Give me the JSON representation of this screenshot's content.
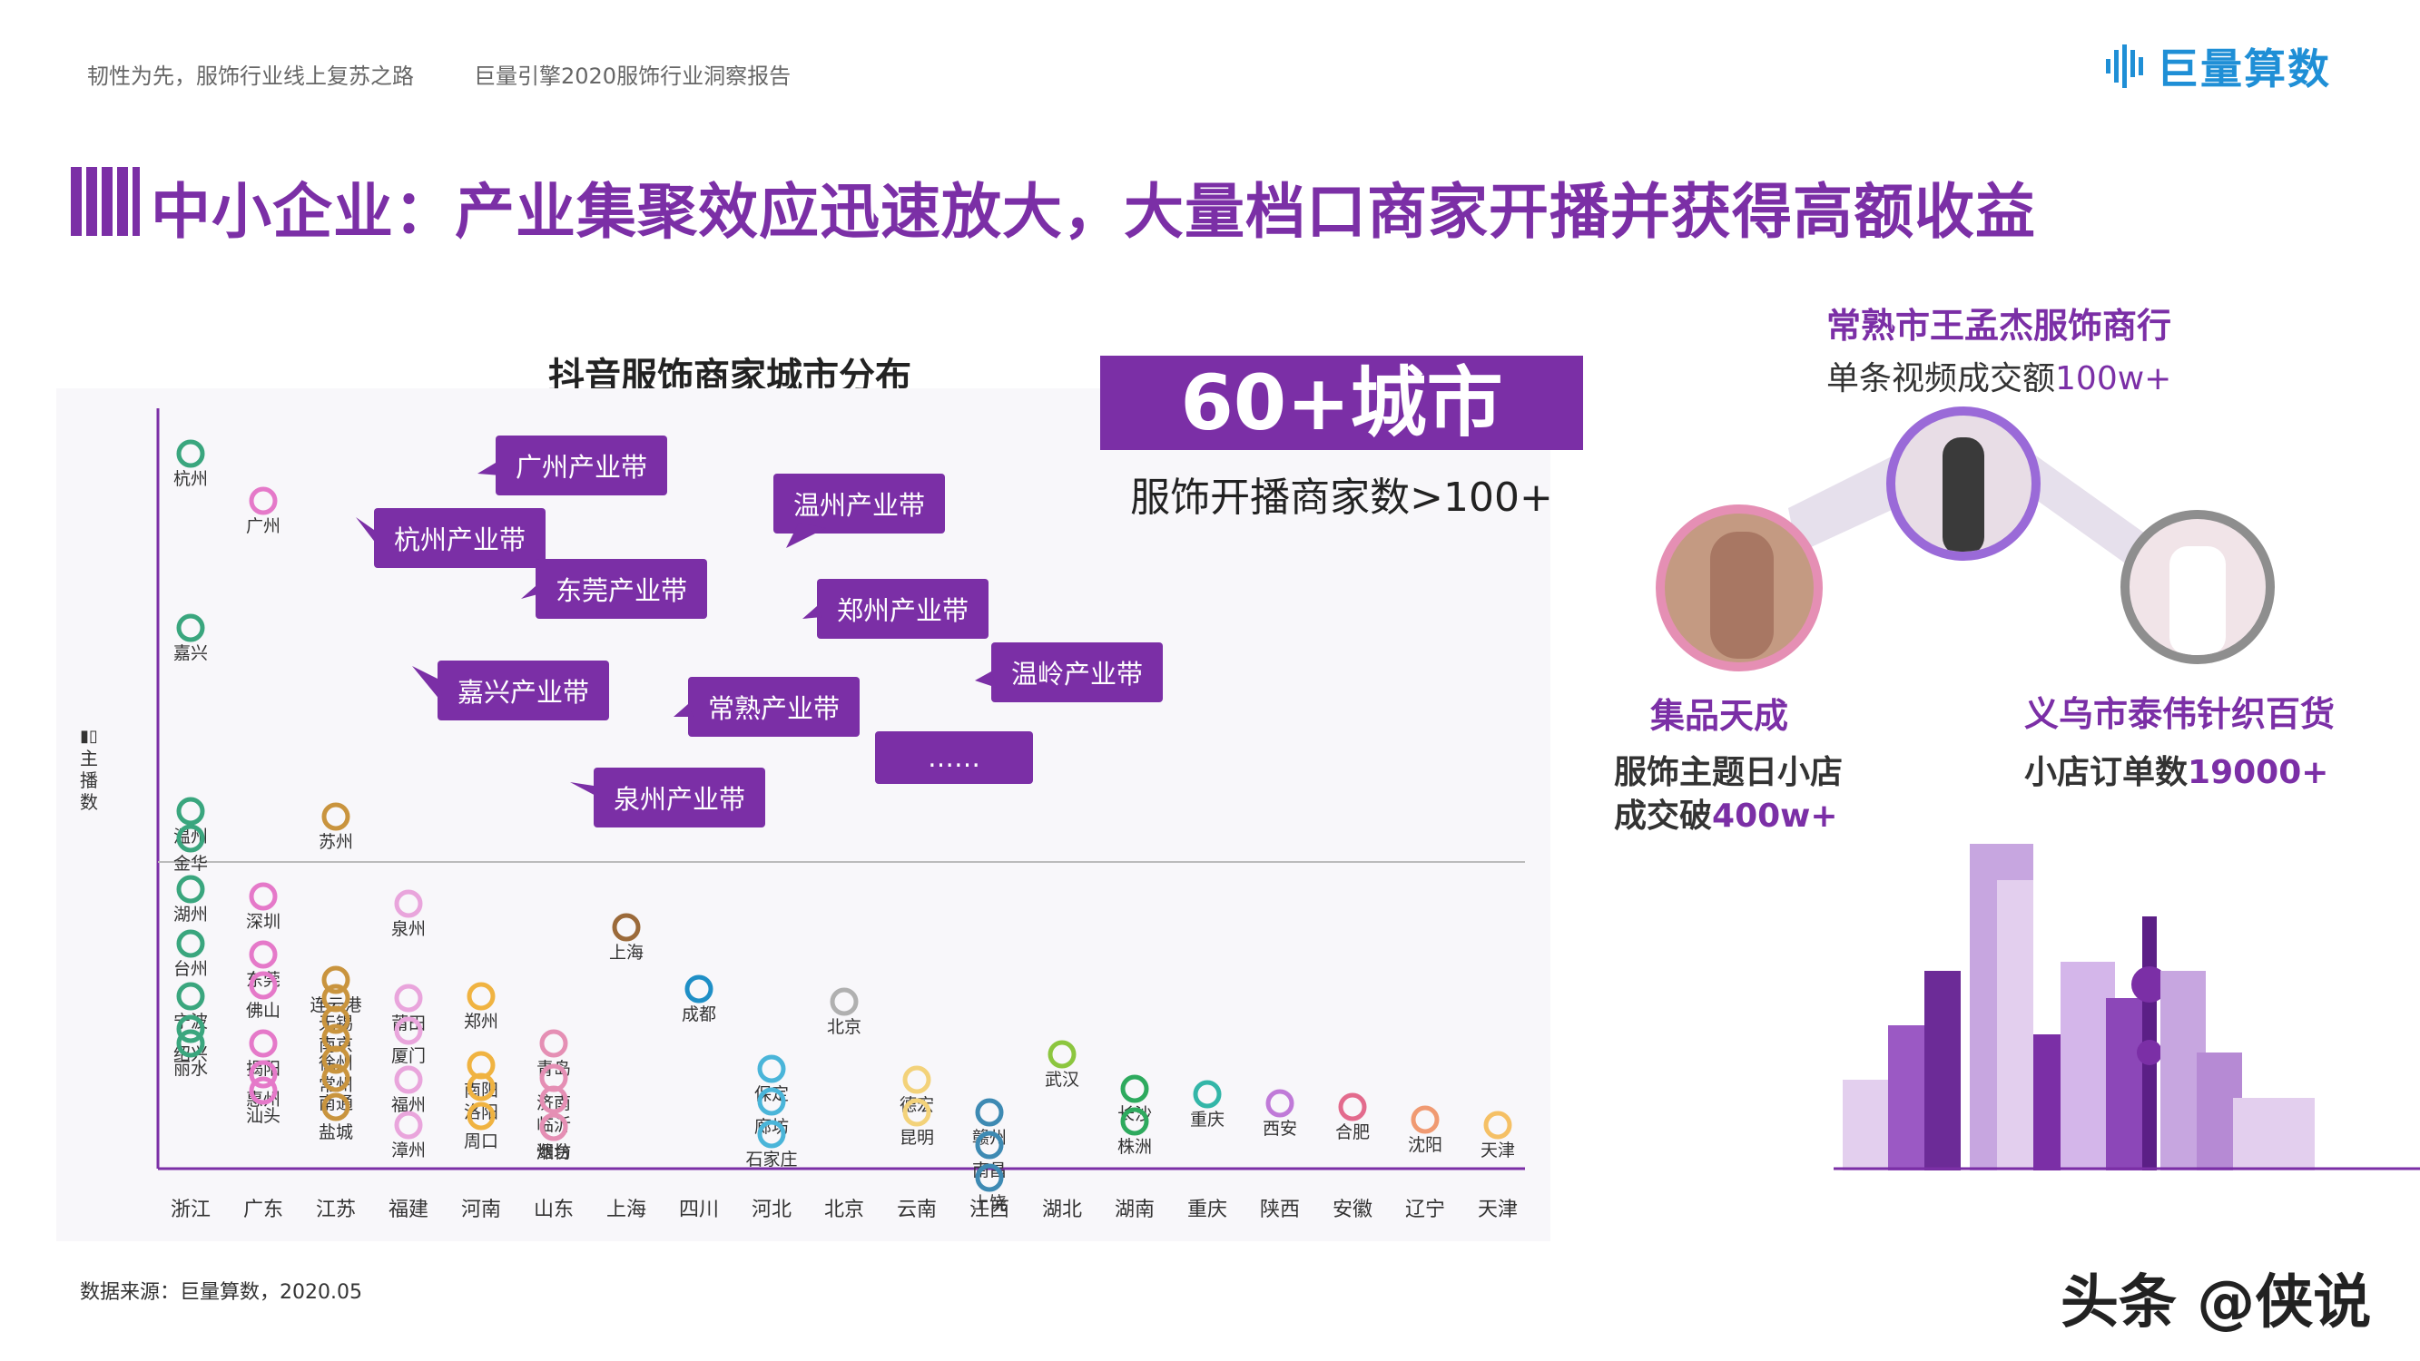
{
  "header": {
    "left_text": "韧性为先，服饰行业线上复苏之路",
    "right_text": "巨量引擎2020服饰行业洞察报告",
    "logo_text": "巨量算数"
  },
  "main_title": "中小企业：产业集聚效应迅速放大，大量档口商家开播并获得高额收益",
  "chart_title": "抖音服饰商家城市分布",
  "y_axis_label": "主播数",
  "bubbles": [
    "广州产业带",
    "杭州产业带",
    "东莞产业带",
    "温州产业带",
    "郑州产业带",
    "嘉兴产业带",
    "常熟产业带",
    "温岭产业带",
    "泉州产业带",
    "……"
  ],
  "stat": {
    "value": "60+城市",
    "sub": "服饰开播商家数>100+"
  },
  "cases": {
    "top": {
      "title": "常熟市王孟杰服饰商行",
      "desc_prefix": "单条视频成交额",
      "desc_highlight": "100w+"
    },
    "left": {
      "title": "集品天成",
      "desc_line1": "服饰主题日小店",
      "desc_prefix": "成交破",
      "desc_highlight": "400w+"
    },
    "right": {
      "title": "义乌市泰伟针织百货",
      "desc_prefix": "小店订单数",
      "desc_highlight": "19000+"
    }
  },
  "source": "数据来源：巨量算数，2020.05",
  "watermark": "头条 @侠说",
  "colors": {
    "purple": "#7b2fa6",
    "pink": "#e579c9",
    "green": "#3aa67e",
    "orange": "#f0b341",
    "brown": "#9b6a3a"
  },
  "chart_data": {
    "type": "scatter",
    "title": "抖音服饰商家城市分布",
    "ylabel": "主播数",
    "categories": [
      "浙江",
      "广东",
      "江苏",
      "福建",
      "河南",
      "山东",
      "上海",
      "四川",
      "河北",
      "北京",
      "云南",
      "江西",
      "湖北",
      "湖南",
      "重庆",
      "陕西",
      "安徽",
      "辽宁",
      "天津"
    ],
    "points": [
      {
        "province": "浙江",
        "city": "杭州",
        "rank": 1,
        "color": "#3aa67e"
      },
      {
        "province": "浙江",
        "city": "嘉兴",
        "rank": 2,
        "color": "#3aa67e"
      },
      {
        "province": "浙江",
        "city": "温州",
        "rank": 3,
        "color": "#3aa67e"
      },
      {
        "province": "浙江",
        "city": "金华",
        "rank": 4,
        "color": "#3aa67e"
      },
      {
        "province": "浙江",
        "city": "湖州",
        "rank": 5,
        "color": "#3aa67e"
      },
      {
        "province": "浙江",
        "city": "台州",
        "rank": 6,
        "color": "#3aa67e"
      },
      {
        "province": "浙江",
        "city": "宁波",
        "rank": 7,
        "color": "#3aa67e"
      },
      {
        "province": "浙江",
        "city": "绍兴",
        "rank": 8,
        "color": "#3aa67e"
      },
      {
        "province": "浙江",
        "city": "丽水",
        "rank": 9,
        "color": "#3aa67e"
      },
      {
        "province": "广东",
        "city": "广州",
        "rank": 1,
        "color": "#e579c9"
      },
      {
        "province": "广东",
        "city": "深圳",
        "rank": 2,
        "color": "#e579c9"
      },
      {
        "province": "广东",
        "city": "东莞",
        "rank": 3,
        "color": "#e579c9"
      },
      {
        "province": "广东",
        "city": "佛山",
        "rank": 4,
        "color": "#e579c9"
      },
      {
        "province": "广东",
        "city": "揭阳",
        "rank": 5,
        "color": "#e579c9"
      },
      {
        "province": "广东",
        "city": "惠州",
        "rank": 6,
        "color": "#e579c9"
      },
      {
        "province": "广东",
        "city": "汕头",
        "rank": 7,
        "color": "#e579c9"
      },
      {
        "province": "江苏",
        "city": "苏州",
        "rank": 1,
        "color": "#c9943e"
      },
      {
        "province": "江苏",
        "city": "连云港",
        "rank": 2,
        "color": "#c9943e"
      },
      {
        "province": "江苏",
        "city": "无锡",
        "rank": 3,
        "color": "#c9943e"
      },
      {
        "province": "江苏",
        "city": "南京",
        "rank": 4,
        "color": "#c9943e"
      },
      {
        "province": "江苏",
        "city": "徐州",
        "rank": 5,
        "color": "#c9943e"
      },
      {
        "province": "江苏",
        "city": "常州",
        "rank": 6,
        "color": "#c9943e"
      },
      {
        "province": "江苏",
        "city": "南通",
        "rank": 7,
        "color": "#c9943e"
      },
      {
        "province": "江苏",
        "city": "盐城",
        "rank": 8,
        "color": "#c9943e"
      },
      {
        "province": "福建",
        "city": "泉州",
        "rank": 1,
        "color": "#e9a5dc"
      },
      {
        "province": "福建",
        "city": "莆田",
        "rank": 2,
        "color": "#e9a5dc"
      },
      {
        "province": "福建",
        "city": "厦门",
        "rank": 3,
        "color": "#e9a5dc"
      },
      {
        "province": "福建",
        "city": "福州",
        "rank": 4,
        "color": "#e9a5dc"
      },
      {
        "province": "福建",
        "city": "漳州",
        "rank": 5,
        "color": "#e9a5dc"
      },
      {
        "province": "河南",
        "city": "郑州",
        "rank": 1,
        "color": "#f0b341"
      },
      {
        "province": "河南",
        "city": "南阳",
        "rank": 2,
        "color": "#f0b341"
      },
      {
        "province": "河南",
        "city": "洛阳",
        "rank": 3,
        "color": "#f0b341"
      },
      {
        "province": "河南",
        "city": "周口",
        "rank": 4,
        "color": "#f0b341"
      },
      {
        "province": "山东",
        "city": "青岛",
        "rank": 1,
        "color": "#e58fb4"
      },
      {
        "province": "山东",
        "city": "济南",
        "rank": 2,
        "color": "#e58fb4"
      },
      {
        "province": "山东",
        "city": "临沂",
        "rank": 3,
        "color": "#e58fb4"
      },
      {
        "province": "山东",
        "city": "潍坊",
        "rank": 4,
        "color": "#e58fb4"
      },
      {
        "province": "山东",
        "city": "烟台",
        "rank": 5,
        "color": "#e58fb4"
      },
      {
        "province": "上海",
        "city": "上海",
        "rank": 1,
        "color": "#9b6a3a"
      },
      {
        "province": "四川",
        "city": "成都",
        "rank": 1,
        "color": "#1f8fc6"
      },
      {
        "province": "河北",
        "city": "保定",
        "rank": 1,
        "color": "#4ab5d9"
      },
      {
        "province": "河北",
        "city": "廊坊",
        "rank": 2,
        "color": "#4ab5d9"
      },
      {
        "province": "河北",
        "city": "石家庄",
        "rank": 3,
        "color": "#4ab5d9"
      },
      {
        "province": "北京",
        "city": "北京",
        "rank": 1,
        "color": "#b0b0b0"
      },
      {
        "province": "云南",
        "city": "德宏",
        "rank": 1,
        "color": "#f3d27a"
      },
      {
        "province": "云南",
        "city": "昆明",
        "rank": 2,
        "color": "#f3d27a"
      },
      {
        "province": "江西",
        "city": "赣州",
        "rank": 1,
        "color": "#3e8ab3"
      },
      {
        "province": "江西",
        "city": "南昌",
        "rank": 2,
        "color": "#3e8ab3"
      },
      {
        "province": "江西",
        "city": "上饶",
        "rank": 3,
        "color": "#3e8ab3"
      },
      {
        "province": "湖北",
        "city": "武汉",
        "rank": 1,
        "color": "#8cc63f"
      },
      {
        "province": "湖南",
        "city": "长沙",
        "rank": 1,
        "color": "#2eaa5e"
      },
      {
        "province": "湖南",
        "city": "株洲",
        "rank": 2,
        "color": "#2eaa5e"
      },
      {
        "province": "重庆",
        "city": "重庆",
        "rank": 1,
        "color": "#33b6a8"
      },
      {
        "province": "陕西",
        "city": "西安",
        "rank": 1,
        "color": "#c07ad8"
      },
      {
        "province": "安徽",
        "city": "合肥",
        "rank": 1,
        "color": "#e36b8d"
      },
      {
        "province": "辽宁",
        "city": "沈阳",
        "rank": 1,
        "color": "#f09a72"
      },
      {
        "province": "天津",
        "city": "天津",
        "rank": 1,
        "color": "#f5c065"
      }
    ]
  }
}
